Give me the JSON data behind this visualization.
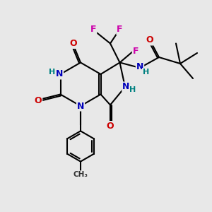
{
  "background_color": "#e8e8e8",
  "figure_size": [
    3.0,
    3.0
  ],
  "dpi": 100,
  "atom_colors": {
    "C": "#000000",
    "N": "#0000bb",
    "O": "#cc0000",
    "F": "#cc00aa",
    "H": "#008080"
  },
  "bond_color": "#000000",
  "bond_width": 1.5
}
